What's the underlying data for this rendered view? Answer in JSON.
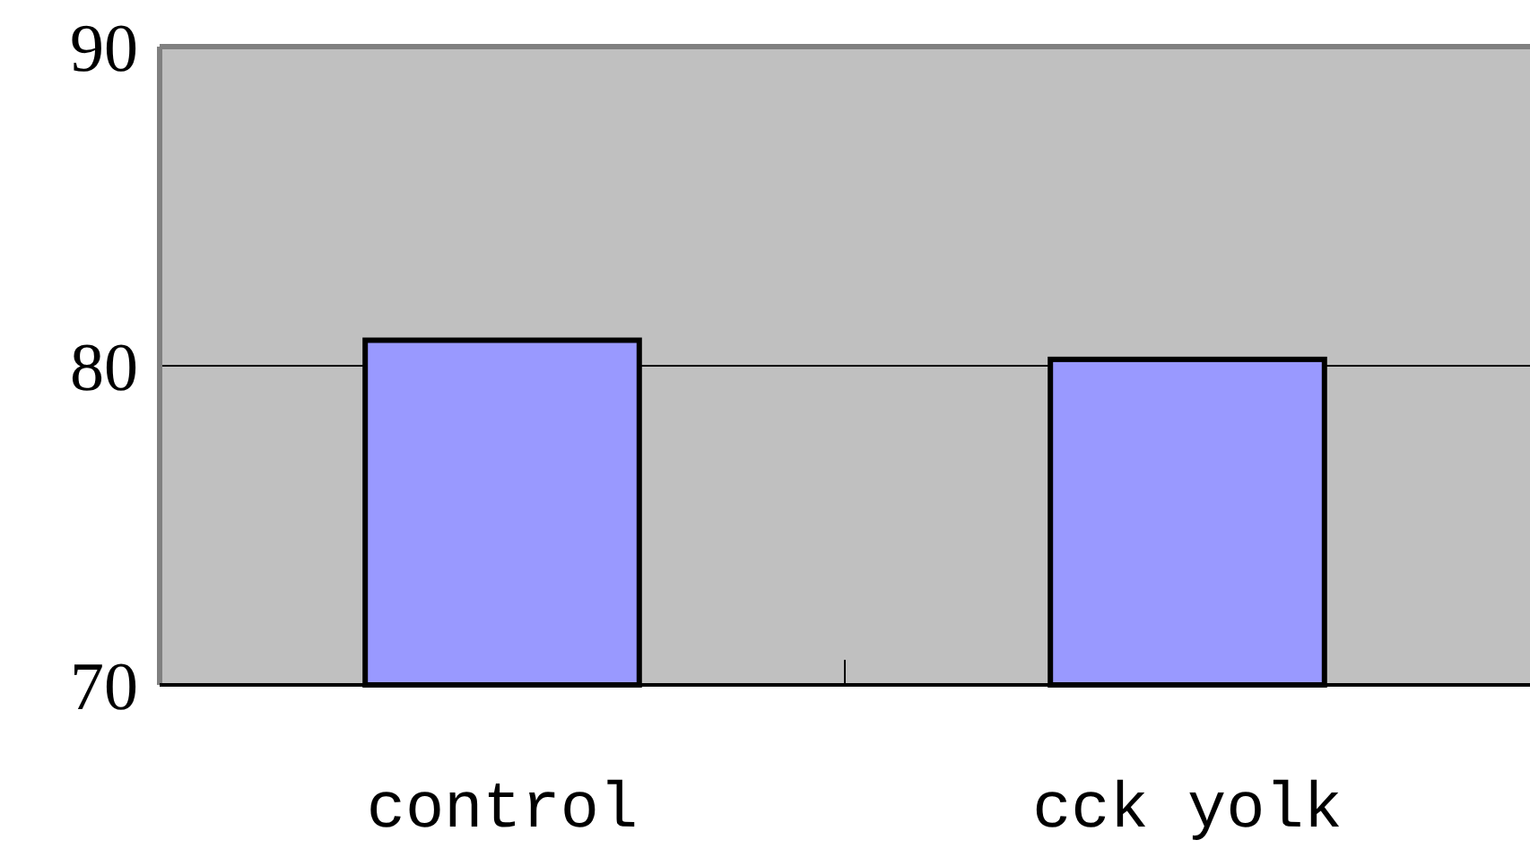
{
  "chart_data": {
    "type": "bar",
    "categories": [
      "control",
      "cck yolk"
    ],
    "values": [
      80.8,
      80.2
    ],
    "color": "#9999ff",
    "ylim": [
      70,
      90
    ],
    "yticks": [
      70,
      80,
      90
    ],
    "grid": "y"
  }
}
